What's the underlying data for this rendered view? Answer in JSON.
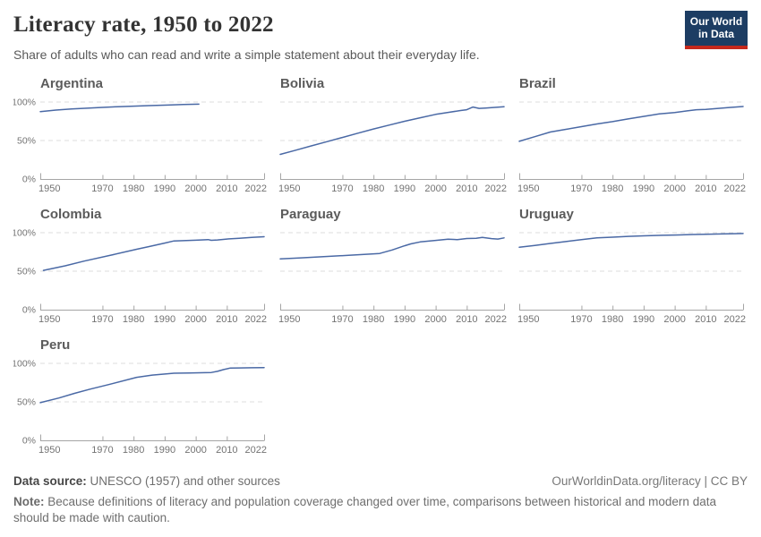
{
  "header": {
    "title": "Literacy rate, 1950 to 2022",
    "subtitle": "Share of adults who can read and write a simple statement about their everyday life.",
    "logo": {
      "line1": "Our World",
      "line2": "in Data"
    }
  },
  "colors": {
    "line": "#4a69a5",
    "grid": "#dcdcdc",
    "axis": "#a5a5a5",
    "tick_label": "#737373",
    "country_title": "#5b5b5b",
    "logo_navy": "#1d3d63",
    "logo_red": "#c5281c"
  },
  "chart_data": {
    "type": "line",
    "title": "Literacy rate, 1950 to 2022",
    "subtitle": "Share of adults who can read and write a simple statement about their everyday life.",
    "layout": "small-multiples 3 columns",
    "x_range": [
      1950,
      2022
    ],
    "x_ticks": [
      1950,
      1970,
      1980,
      1990,
      2000,
      2010,
      2022
    ],
    "ylim": [
      0,
      100
    ],
    "y_tick_labels": [
      "0%",
      "50%",
      "100%"
    ],
    "grid": "dashed horizontal gridlines at 50% and 100%",
    "charts": [
      {
        "title": "Argentina",
        "series": [
          [
            1950,
            87.6
          ],
          [
            1955,
            89.5
          ],
          [
            1960,
            91
          ],
          [
            1965,
            92
          ],
          [
            1970,
            93
          ],
          [
            1975,
            93.9
          ],
          [
            1980,
            94.7
          ],
          [
            1985,
            95.4
          ],
          [
            1991,
            96.1
          ],
          [
            1996,
            96.7
          ],
          [
            2001,
            97.2
          ]
        ]
      },
      {
        "title": "Bolivia",
        "series": [
          [
            1950,
            32
          ],
          [
            1955,
            37.5
          ],
          [
            1960,
            43
          ],
          [
            1965,
            48.5
          ],
          [
            1970,
            54
          ],
          [
            1975,
            59.5
          ],
          [
            1980,
            65
          ],
          [
            1985,
            70
          ],
          [
            1990,
            75
          ],
          [
            1995,
            79.5
          ],
          [
            2000,
            84
          ],
          [
            2004,
            86.5
          ],
          [
            2008,
            89
          ],
          [
            2010,
            90
          ],
          [
            2012,
            93.5
          ],
          [
            2014,
            91.8
          ],
          [
            2016,
            92.2
          ],
          [
            2018,
            92.7
          ],
          [
            2020,
            93.3
          ],
          [
            2022,
            94
          ]
        ]
      },
      {
        "title": "Brazil",
        "series": [
          [
            1950,
            49
          ],
          [
            1955,
            55
          ],
          [
            1960,
            61
          ],
          [
            1965,
            64.5
          ],
          [
            1970,
            68
          ],
          [
            1975,
            71.5
          ],
          [
            1980,
            74.5
          ],
          [
            1985,
            78
          ],
          [
            1991,
            82
          ],
          [
            1995,
            84.5
          ],
          [
            2000,
            86.4
          ],
          [
            2004,
            88.5
          ],
          [
            2007,
            90
          ],
          [
            2010,
            90.4
          ],
          [
            2014,
            91.7
          ],
          [
            2018,
            93
          ],
          [
            2022,
            94.2
          ]
        ]
      },
      {
        "title": "Colombia",
        "series": [
          [
            1951,
            51
          ],
          [
            1958,
            57
          ],
          [
            1964,
            63
          ],
          [
            1973,
            71
          ],
          [
            1981,
            78.5
          ],
          [
            1985,
            82
          ],
          [
            1990,
            86.5
          ],
          [
            1993,
            89.3
          ],
          [
            1996,
            89.7
          ],
          [
            2000,
            90.2
          ],
          [
            2004,
            91
          ],
          [
            2005,
            90.1
          ],
          [
            2007,
            90.6
          ],
          [
            2010,
            91.7
          ],
          [
            2014,
            92.8
          ],
          [
            2018,
            94
          ],
          [
            2022,
            94.8
          ]
        ]
      },
      {
        "title": "Paraguay",
        "series": [
          [
            1950,
            66
          ],
          [
            1956,
            67.2
          ],
          [
            1962,
            68.5
          ],
          [
            1972,
            70.6
          ],
          [
            1982,
            73
          ],
          [
            1986,
            77.5
          ],
          [
            1990,
            83
          ],
          [
            1992,
            85.5
          ],
          [
            1995,
            88
          ],
          [
            2000,
            90
          ],
          [
            2004,
            91.5
          ],
          [
            2007,
            91
          ],
          [
            2010,
            92.5
          ],
          [
            2013,
            92.7
          ],
          [
            2015,
            93.8
          ],
          [
            2018,
            92.3
          ],
          [
            2020,
            91.8
          ],
          [
            2022,
            93.2
          ]
        ]
      },
      {
        "title": "Uruguay",
        "series": [
          [
            1950,
            81
          ],
          [
            1955,
            83.5
          ],
          [
            1960,
            86
          ],
          [
            1965,
            88.5
          ],
          [
            1970,
            91
          ],
          [
            1975,
            93.2
          ],
          [
            1980,
            94.2
          ],
          [
            1985,
            95.2
          ],
          [
            1990,
            95.9
          ],
          [
            1996,
            96.6
          ],
          [
            2000,
            97
          ],
          [
            2006,
            97.7
          ],
          [
            2010,
            98
          ],
          [
            2015,
            98.4
          ],
          [
            2019,
            98.7
          ],
          [
            2022,
            98.9
          ]
        ]
      },
      {
        "title": "Peru",
        "series": [
          [
            1950,
            49
          ],
          [
            1956,
            55
          ],
          [
            1961,
            61
          ],
          [
            1966,
            66.5
          ],
          [
            1972,
            72.4
          ],
          [
            1981,
            81.9
          ],
          [
            1986,
            84.8
          ],
          [
            1993,
            87.2
          ],
          [
            1998,
            87.6
          ],
          [
            2003,
            87.9
          ],
          [
            2005,
            88.1
          ],
          [
            2007,
            89.6
          ],
          [
            2009,
            92
          ],
          [
            2011,
            93.8
          ],
          [
            2014,
            94.1
          ],
          [
            2018,
            94.3
          ],
          [
            2022,
            94.5
          ]
        ]
      }
    ]
  },
  "footer": {
    "source_label": "Data source:",
    "source_text": "UNESCO (1957) and other sources",
    "link": "OurWorldinData.org/literacy | CC BY",
    "note_label": "Note:",
    "note_text": "Because definitions of literacy and population coverage changed over time, comparisons between historical and modern data should be made with caution."
  }
}
